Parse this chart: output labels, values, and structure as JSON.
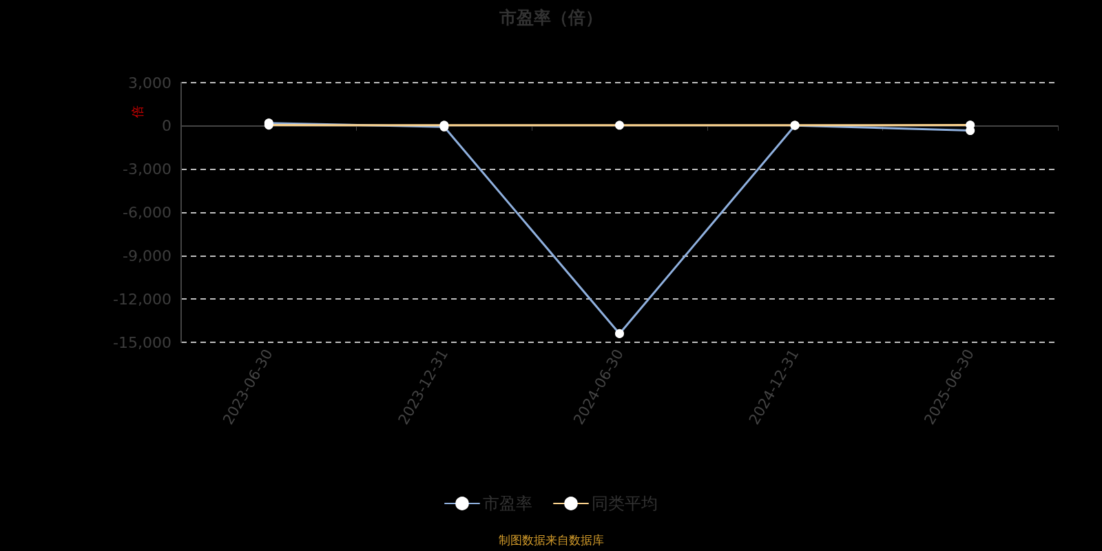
{
  "chart_data": {
    "type": "line",
    "title": "市盈率（倍）",
    "ylabel": "倍",
    "categories": [
      "2023-06-30",
      "2023-12-31",
      "2024-06-30",
      "2024-12-31",
      "2025-06-30"
    ],
    "series": [
      {
        "name": "市盈率",
        "color": "#8fb0de",
        "values": [
          200,
          -70,
          -14400,
          30,
          -320
        ]
      },
      {
        "name": "同类平均",
        "color": "#fcd38e",
        "values": [
          60,
          50,
          50,
          50,
          60
        ]
      }
    ],
    "ylim": [
      -15000,
      3000
    ],
    "yticks": [
      {
        "value": -15000,
        "label": "-15,000"
      },
      {
        "value": -12000,
        "label": "-12,000"
      },
      {
        "value": -9000,
        "label": "-9,000"
      },
      {
        "value": -6000,
        "label": "-6,000"
      },
      {
        "value": -3000,
        "label": "-3,000"
      },
      0,
      {
        "value": 3000,
        "label": "3,000"
      }
    ],
    "grid": "y",
    "legend": "bottom",
    "marker": "circle",
    "line_style": "solid",
    "annotations": [
      "制图数据来自数据库"
    ]
  }
}
